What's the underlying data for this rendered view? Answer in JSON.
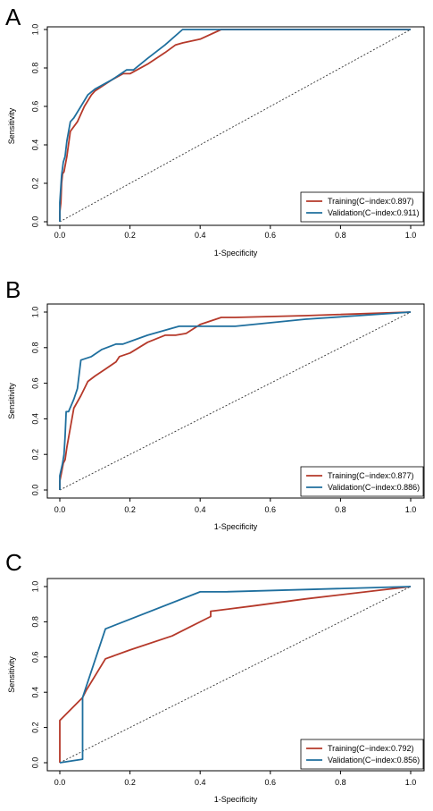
{
  "colors": {
    "training": "#b5392a",
    "validation": "#1f6f9e",
    "diagonal": "#333333",
    "frame": "#000000"
  },
  "chart_data": [
    {
      "type": "line",
      "panel_label": "A",
      "xlabel": "1-Specificity",
      "ylabel": "Sensitivity",
      "xlim": [
        0,
        1
      ],
      "ylim": [
        0,
        1
      ],
      "xticks": [
        "0.0",
        "0.2",
        "0.4",
        "0.6",
        "0.8",
        "1.0"
      ],
      "yticks": [
        "0.0",
        "0.2",
        "0.4",
        "0.6",
        "0.8",
        "1.0"
      ],
      "legend_position": "bottom-right",
      "reference_line": "diagonal",
      "series": [
        {
          "name": "Training(C−index:0.897)",
          "color": "#b5392a",
          "x": [
            0,
            0,
            0.003,
            0.005,
            0.008,
            0.012,
            0.02,
            0.03,
            0.05,
            0.07,
            0.09,
            0.1,
            0.15,
            0.18,
            0.2,
            0.25,
            0.3,
            0.33,
            0.35,
            0.4,
            0.46,
            0.5,
            0.6,
            0.8,
            1.0
          ],
          "y": [
            0,
            0.05,
            0.1,
            0.2,
            0.25,
            0.26,
            0.34,
            0.47,
            0.52,
            0.6,
            0.66,
            0.68,
            0.74,
            0.77,
            0.77,
            0.82,
            0.88,
            0.92,
            0.93,
            0.95,
            1.0,
            1.0,
            1.0,
            1.0,
            1.0
          ]
        },
        {
          "name": "Validation(C−index:0.911)",
          "color": "#1f6f9e",
          "x": [
            0,
            0,
            0.005,
            0.01,
            0.015,
            0.02,
            0.03,
            0.04,
            0.06,
            0.08,
            0.1,
            0.15,
            0.19,
            0.21,
            0.25,
            0.3,
            0.35,
            0.5,
            0.7,
            0.9,
            1.0
          ],
          "y": [
            0,
            0.1,
            0.24,
            0.31,
            0.34,
            0.42,
            0.52,
            0.54,
            0.6,
            0.66,
            0.69,
            0.74,
            0.79,
            0.79,
            0.85,
            0.92,
            1.0,
            1.0,
            1.0,
            1.0,
            1.0
          ]
        }
      ]
    },
    {
      "type": "line",
      "panel_label": "B",
      "xlabel": "1-Specificity",
      "ylabel": "Sensitivity",
      "xlim": [
        0,
        1
      ],
      "ylim": [
        0,
        1
      ],
      "xticks": [
        "0.0",
        "0.2",
        "0.4",
        "0.6",
        "0.8",
        "1.0"
      ],
      "yticks": [
        "0.0",
        "0.2",
        "0.4",
        "0.6",
        "0.8",
        "1.0"
      ],
      "legend_position": "bottom-right",
      "reference_line": "diagonal",
      "series": [
        {
          "name": "Training(C−index:0.877)",
          "color": "#b5392a",
          "x": [
            0,
            0,
            0.005,
            0.01,
            0.015,
            0.02,
            0.03,
            0.04,
            0.06,
            0.08,
            0.1,
            0.13,
            0.16,
            0.17,
            0.2,
            0.25,
            0.3,
            0.33,
            0.36,
            0.4,
            0.46,
            0.5,
            0.7,
            1.0
          ],
          "y": [
            0,
            0.05,
            0.1,
            0.15,
            0.17,
            0.24,
            0.35,
            0.46,
            0.53,
            0.61,
            0.64,
            0.68,
            0.72,
            0.75,
            0.77,
            0.83,
            0.87,
            0.87,
            0.88,
            0.93,
            0.97,
            0.97,
            0.98,
            1.0
          ]
        },
        {
          "name": "Validation(C−index:0.886)",
          "color": "#1f6f9e",
          "x": [
            0,
            0,
            0.008,
            0.012,
            0.015,
            0.018,
            0.025,
            0.04,
            0.05,
            0.06,
            0.09,
            0.12,
            0.16,
            0.18,
            0.25,
            0.34,
            0.5,
            0.7,
            1.0
          ],
          "y": [
            0,
            0.08,
            0.15,
            0.2,
            0.3,
            0.44,
            0.44,
            0.51,
            0.57,
            0.73,
            0.75,
            0.79,
            0.82,
            0.82,
            0.87,
            0.92,
            0.92,
            0.96,
            1.0
          ]
        }
      ]
    },
    {
      "type": "line",
      "panel_label": "C",
      "xlabel": "1-Specificity",
      "ylabel": "Sensitivity",
      "xlim": [
        0,
        1
      ],
      "ylim": [
        0,
        1
      ],
      "xticks": [
        "0.0",
        "0.2",
        "0.4",
        "0.6",
        "0.8",
        "1.0"
      ],
      "yticks": [
        "0.0",
        "0.2",
        "0.4",
        "0.6",
        "0.8",
        "1.0"
      ],
      "legend_position": "bottom-right",
      "reference_line": "diagonal",
      "series": [
        {
          "name": "Training(C−index:0.792)",
          "color": "#b5392a",
          "x": [
            0,
            0,
            0.065,
            0.075,
            0.13,
            0.2,
            0.32,
            0.37,
            0.43,
            0.43,
            0.55,
            0.7,
            1.0
          ],
          "y": [
            0,
            0.24,
            0.37,
            0.41,
            0.59,
            0.64,
            0.72,
            0.77,
            0.83,
            0.86,
            0.89,
            0.93,
            1.0
          ]
        },
        {
          "name": "Validation(C−index:0.856)",
          "color": "#1f6f9e",
          "x": [
            0,
            0.065,
            0.065,
            0.13,
            0.4,
            0.47,
            1.0
          ],
          "y": [
            0,
            0.02,
            0.37,
            0.76,
            0.97,
            0.97,
            1.0
          ]
        }
      ]
    }
  ]
}
